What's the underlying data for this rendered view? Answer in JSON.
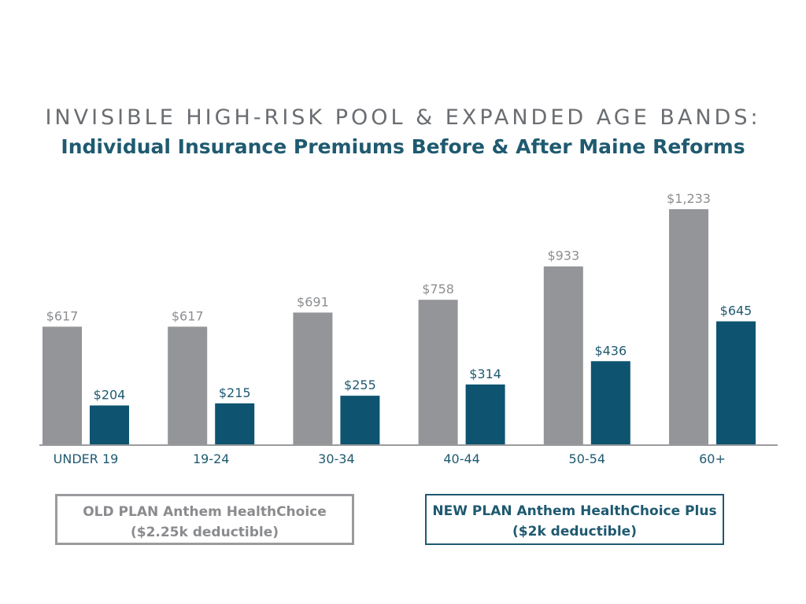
{
  "title": {
    "line1": "INVISIBLE HIGH-RISK POOL & EXPANDED AGE BANDS:",
    "line2": "Individual Insurance Premiums Before & After Maine Reforms"
  },
  "colors": {
    "old": "#939598",
    "new": "#0e5470",
    "label_old": "#8c8e91",
    "label_new": "#1f5a70",
    "axis": "#9a9b9e"
  },
  "legend": {
    "old_line1": "OLD PLAN Anthem HealthChoice",
    "old_line2": "($2.25k deductible)",
    "new_line1": "NEW PLAN Anthem HealthChoice Plus",
    "new_line2": "($2k deductible)"
  },
  "chart_data": {
    "type": "bar",
    "categories": [
      "UNDER 19",
      "19-24",
      "30-34",
      "40-44",
      "50-54",
      "60+"
    ],
    "series": [
      {
        "name": "OLD PLAN Anthem HealthChoice",
        "values": [
          617,
          617,
          691,
          758,
          933,
          1233
        ],
        "labels": [
          "$617",
          "$617",
          "$691",
          "$758",
          "$933",
          "$1,233"
        ]
      },
      {
        "name": "NEW PLAN Anthem HealthChoice Plus",
        "values": [
          204,
          215,
          255,
          314,
          436,
          645
        ],
        "labels": [
          "$204",
          "$215",
          "$255",
          "$314",
          "$436",
          "$645"
        ]
      }
    ],
    "ylim": [
      0,
      1233
    ],
    "grid": false,
    "legend_position": "bottom"
  }
}
